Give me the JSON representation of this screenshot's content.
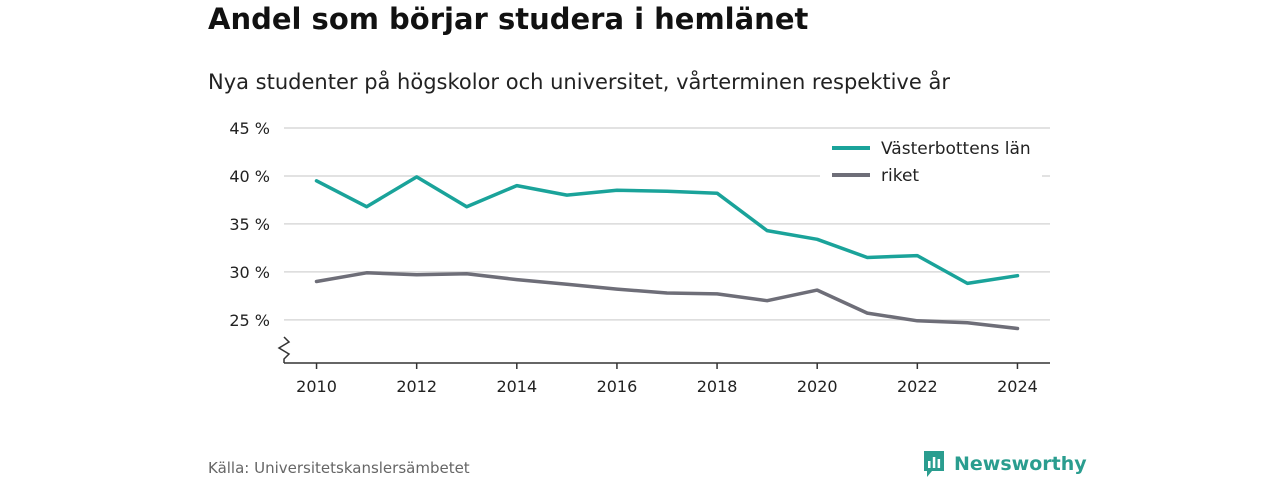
{
  "header": {
    "title": "Andel som börjar studera i hemlänet",
    "subtitle": "Nya studenter på högskolor och universitet, vårterminen respektive år"
  },
  "footer": {
    "source": "Källa: Universitetskanslersämbetet",
    "brand": "Newsworthy"
  },
  "colors": {
    "series_primary": "#1aa39a",
    "series_secondary": "#6e6e78",
    "grid": "#d9d9d9",
    "axis": "#333333",
    "brand": "#2a9d8f"
  },
  "chart_data": {
    "type": "line",
    "title": "Andel som börjar studera i hemlänet",
    "subtitle": "Nya studenter på högskolor och universitet, vårterminen respektive år",
    "x": [
      2010,
      2011,
      2012,
      2013,
      2014,
      2015,
      2016,
      2017,
      2018,
      2019,
      2020,
      2021,
      2022,
      2023,
      2024
    ],
    "series": [
      {
        "name": "Västerbottens län",
        "values": [
          39.5,
          36.8,
          39.9,
          36.8,
          39.0,
          38.0,
          38.5,
          38.4,
          38.2,
          34.3,
          33.4,
          31.5,
          31.7,
          28.8,
          29.6
        ]
      },
      {
        "name": "riket",
        "values": [
          29.0,
          29.9,
          29.7,
          29.8,
          29.2,
          28.7,
          28.2,
          27.8,
          27.7,
          27.0,
          28.1,
          25.7,
          24.9,
          24.7,
          24.1
        ]
      }
    ],
    "yticks": [
      25,
      30,
      35,
      40,
      45
    ],
    "ytick_labels": [
      "25 %",
      "30 %",
      "35 %",
      "40 %",
      "45 %"
    ],
    "xticks": [
      2010,
      2012,
      2014,
      2016,
      2018,
      2020,
      2022,
      2024
    ],
    "xtick_labels": [
      "2010",
      "2012",
      "2014",
      "2016",
      "2018",
      "2020",
      "2022",
      "2024"
    ],
    "ylim": [
      20.5,
      45
    ],
    "xlim": [
      2009.35,
      2024.65
    ],
    "y_axis_break": true,
    "grid": true,
    "legend_position": "top-right"
  }
}
